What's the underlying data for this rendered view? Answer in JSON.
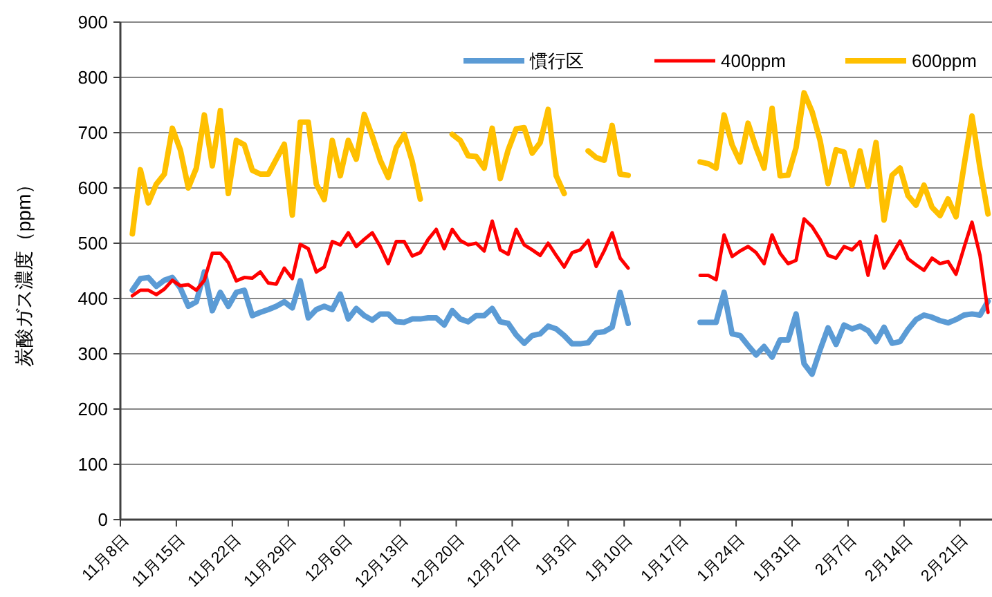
{
  "chart_data": {
    "type": "line",
    "ylabel": "炭酸ガス濃度（ppm）",
    "legend": "top",
    "grid": "y",
    "marker": "none",
    "line_style": "solid",
    "ylim": [
      0,
      900
    ],
    "yticks": [
      0,
      100,
      200,
      300,
      400,
      500,
      600,
      700,
      800,
      900
    ],
    "categories": [
      "11月8日",
      null,
      null,
      null,
      null,
      null,
      null,
      "11月15日",
      null,
      null,
      null,
      null,
      null,
      null,
      "11月22日",
      null,
      null,
      null,
      null,
      null,
      null,
      "11月29日",
      null,
      null,
      null,
      null,
      null,
      null,
      "12月6日",
      null,
      null,
      null,
      null,
      null,
      null,
      "12月13日",
      null,
      null,
      null,
      null,
      null,
      null,
      "12月20日",
      null,
      null,
      null,
      null,
      null,
      null,
      "12月27日",
      null,
      null,
      null,
      null,
      null,
      null,
      "1月3日",
      null,
      null,
      null,
      null,
      null,
      null,
      "1月10日",
      null,
      null,
      null,
      null,
      null,
      null,
      "1月17日",
      null,
      null,
      null,
      null,
      null,
      null,
      "1月24日",
      null,
      null,
      null,
      null,
      null,
      null,
      "1月31日",
      null,
      null,
      null,
      null,
      null,
      null,
      "2月7日",
      null,
      null,
      null,
      null,
      null,
      null,
      "2月14日",
      null,
      null,
      null,
      null,
      null,
      null,
      "2月21日",
      null,
      null,
      null
    ],
    "series": [
      {
        "name": "慣行区",
        "color": "#5b9bd5",
        "values": [
          null,
          415,
          436,
          438,
          422,
          433,
          438,
          419,
          386,
          394,
          448,
          378,
          411,
          386,
          411,
          415,
          369,
          375,
          380,
          386,
          394,
          383,
          432,
          365,
          380,
          386,
          380,
          408,
          363,
          382,
          369,
          361,
          372,
          372,
          358,
          357,
          363,
          363,
          365,
          365,
          352,
          378,
          363,
          358,
          369,
          369,
          382,
          358,
          355,
          334,
          319,
          333,
          336,
          350,
          345,
          333,
          318,
          318,
          320,
          338,
          340,
          348,
          411,
          355,
          null,
          null,
          null,
          null,
          null,
          null,
          null,
          null,
          357,
          357,
          357,
          411,
          336,
          333,
          315,
          298,
          313,
          294,
          325,
          325,
          372,
          282,
          263,
          307,
          347,
          317,
          352,
          345,
          350,
          342,
          322,
          348,
          319,
          322,
          344,
          362,
          370,
          366,
          360,
          356,
          362,
          370,
          372,
          370,
          395
        ]
      },
      {
        "name": "400ppm",
        "color": "#ff0000",
        "values": [
          null,
          405,
          415,
          415,
          407,
          417,
          433,
          423,
          425,
          415,
          433,
          482,
          482,
          465,
          432,
          438,
          437,
          448,
          428,
          426,
          455,
          436,
          498,
          490,
          448,
          457,
          503,
          497,
          519,
          494,
          507,
          519,
          494,
          463,
          503,
          503,
          477,
          483,
          507,
          525,
          490,
          525,
          505,
          497,
          500,
          486,
          540,
          488,
          480,
          525,
          497,
          488,
          478,
          500,
          478,
          457,
          483,
          488,
          505,
          458,
          486,
          519,
          473,
          455,
          null,
          null,
          null,
          null,
          null,
          null,
          null,
          null,
          442,
          442,
          434,
          515,
          476,
          486,
          494,
          483,
          463,
          515,
          482,
          463,
          469,
          544,
          530,
          507,
          478,
          473,
          494,
          488,
          503,
          442,
          513,
          455,
          480,
          504,
          472,
          461,
          451,
          473,
          463,
          467,
          444,
          492,
          538,
          478,
          375
        ]
      },
      {
        "name": "600ppm",
        "color": "#ffc000",
        "values": [
          null,
          517,
          633,
          573,
          607,
          625,
          708,
          669,
          600,
          636,
          732,
          640,
          740,
          590,
          686,
          678,
          632,
          625,
          625,
          652,
          679,
          551,
          719,
          719,
          607,
          579,
          686,
          622,
          686,
          652,
          733,
          694,
          650,
          619,
          673,
          697,
          648,
          580,
          null,
          null,
          null,
          697,
          686,
          658,
          657,
          636,
          708,
          617,
          669,
          707,
          709,
          663,
          682,
          742,
          622,
          590,
          null,
          null,
          667,
          655,
          650,
          713,
          625,
          623,
          null,
          null,
          null,
          null,
          null,
          null,
          null,
          null,
          647,
          644,
          636,
          732,
          678,
          647,
          717,
          673,
          636,
          744,
          622,
          623,
          673,
          772,
          738,
          686,
          608,
          669,
          665,
          605,
          667,
          603,
          682,
          542,
          623,
          636,
          586,
          569,
          605,
          565,
          550,
          580,
          548,
          640,
          730,
          636,
          553
        ]
      }
    ]
  }
}
